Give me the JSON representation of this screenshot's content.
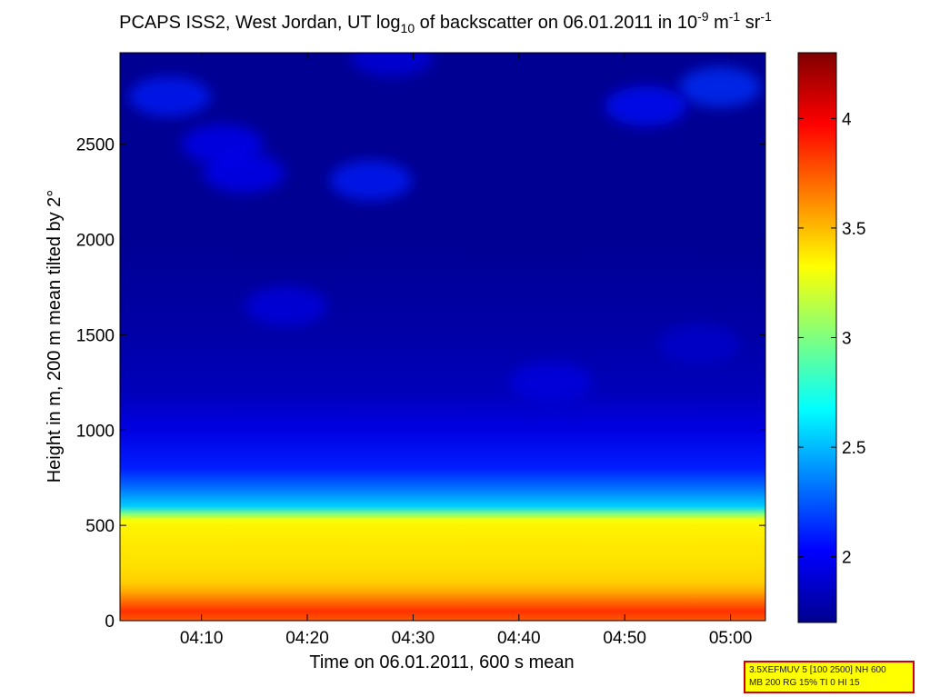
{
  "title": {
    "prefix": "PCAPS ISS2, West Jordan, UT log",
    "prefix_sub": "10",
    "middle": " of backscatter on 06.01.2011 in 10",
    "exp1": "-9",
    "mid2": " m",
    "exp2": "-1",
    "mid3": " sr",
    "exp3": "-1"
  },
  "info_box": {
    "line1": "3.5XEFMUV 5 [100 2500] NH 600",
    "line2": "MB 200 RG 15% TI 0 HI 15"
  },
  "chart_data": {
    "type": "heatmap",
    "xlabel": "Time on 06.01.2011, 600 s mean",
    "ylabel": "Height in m, 200 m mean tilted by 2°",
    "xlim": [
      "04:02",
      "05:03"
    ],
    "ylim": [
      0,
      2980
    ],
    "x_ticks": [
      "04:10",
      "04:20",
      "04:30",
      "04:40",
      "04:50",
      "05:00"
    ],
    "x_tick_minutes": [
      250,
      260,
      270,
      280,
      290,
      300
    ],
    "x_range_minutes": [
      242.3,
      303.3
    ],
    "y_ticks": [
      0,
      500,
      1000,
      1500,
      2000,
      2500
    ],
    "colorbar": {
      "colormap": "jet",
      "clim": [
        1.7,
        4.3
      ],
      "ticks": [
        2,
        2.5,
        3,
        3.5,
        4
      ],
      "tick_labels": [
        "2",
        "2.5",
        "3",
        "3.5",
        "4"
      ]
    },
    "profile": {
      "heights_m": [
        0,
        50,
        100,
        150,
        200,
        300,
        400,
        500,
        530,
        560,
        600,
        700,
        800,
        1000,
        1200,
        1500,
        2000,
        2500,
        2980
      ],
      "log10_backscatter": [
        3.75,
        3.85,
        3.7,
        3.55,
        3.45,
        3.4,
        3.38,
        3.35,
        3.3,
        3.0,
        2.55,
        2.3,
        2.1,
        1.95,
        1.85,
        1.8,
        1.75,
        1.75,
        1.75
      ]
    },
    "patches": [
      {
        "x_minutes": 247,
        "height_m": 2750,
        "log10_backscatter": 2.1
      },
      {
        "x_minutes": 252,
        "height_m": 2500,
        "log10_backscatter": 2.0
      },
      {
        "x_minutes": 254,
        "height_m": 2350,
        "log10_backscatter": 2.0
      },
      {
        "x_minutes": 266,
        "height_m": 2310,
        "log10_backscatter": 2.1
      },
      {
        "x_minutes": 268,
        "height_m": 2960,
        "log10_backscatter": 1.95
      },
      {
        "x_minutes": 299,
        "height_m": 2800,
        "log10_backscatter": 2.15
      },
      {
        "x_minutes": 292,
        "height_m": 2700,
        "log10_backscatter": 2.05
      },
      {
        "x_minutes": 258,
        "height_m": 1650,
        "log10_backscatter": 1.95
      },
      {
        "x_minutes": 283,
        "height_m": 1250,
        "log10_backscatter": 1.95
      },
      {
        "x_minutes": 297,
        "height_m": 1450,
        "log10_backscatter": 1.9
      }
    ]
  }
}
